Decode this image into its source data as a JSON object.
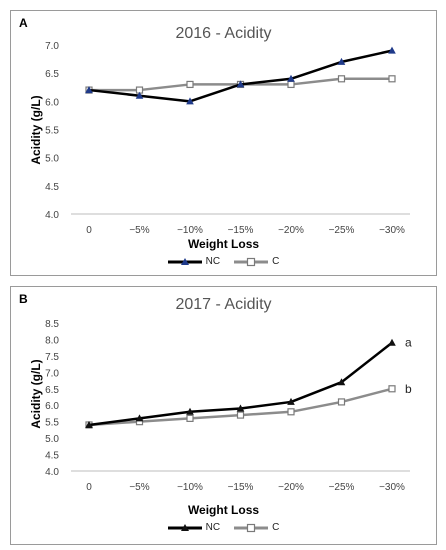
{
  "chart_data": [
    {
      "type": "line",
      "panel_label": "A",
      "title": "2016 - Acidity",
      "xlabel": "Weight Loss",
      "ylabel": "Acidity (g/L)",
      "categories": [
        "0",
        "−5%",
        "−10%",
        "−15%",
        "−20%",
        "−25%",
        "−30%"
      ],
      "yticks": [
        "4.0",
        "4.5",
        "5.0",
        "5.5",
        "6.0",
        "6.5",
        "7.0"
      ],
      "ylim": [
        4.0,
        7.0
      ],
      "grid": false,
      "legend_position": "bottom",
      "series": [
        {
          "name": "NC",
          "values": [
            6.2,
            6.1,
            6.0,
            6.3,
            6.4,
            6.7,
            6.9
          ],
          "color": "#000000",
          "marker": "triangle"
        },
        {
          "name": "C",
          "values": [
            6.2,
            6.2,
            6.3,
            6.3,
            6.3,
            6.4,
            6.4
          ],
          "color": "#8c8c8c",
          "marker": "square"
        }
      ],
      "annotations": []
    },
    {
      "type": "line",
      "panel_label": "B",
      "title": "2017 - Acidity",
      "xlabel": "Weight Loss",
      "ylabel": "Acidity (g/L)",
      "categories": [
        "0",
        "−5%",
        "−10%",
        "−15%",
        "−20%",
        "−25%",
        "−30%"
      ],
      "yticks": [
        "4.0",
        "4.5",
        "5.0",
        "5.5",
        "6.0",
        "6.5",
        "7.0",
        "7.5",
        "8.0",
        "8.5"
      ],
      "ylim": [
        4.0,
        8.5
      ],
      "grid": false,
      "legend_position": "bottom",
      "series": [
        {
          "name": "NC",
          "values": [
            5.4,
            5.6,
            5.8,
            5.9,
            6.1,
            6.7,
            7.9
          ],
          "color": "#000000",
          "marker": "triangle"
        },
        {
          "name": "C",
          "values": [
            5.4,
            5.5,
            5.6,
            5.7,
            5.8,
            6.1,
            6.5
          ],
          "color": "#8c8c8c",
          "marker": "square"
        }
      ],
      "annotations": [
        {
          "text": "a",
          "series": 0
        },
        {
          "text": "b",
          "series": 1
        }
      ]
    }
  ]
}
